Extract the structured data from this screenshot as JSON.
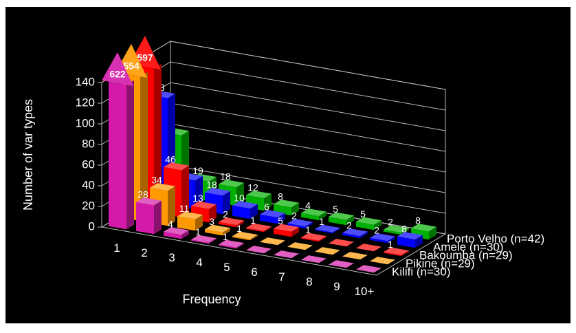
{
  "chart_data": {
    "type": "bar3d",
    "ylabel": "Number of var types",
    "xlabel": "Frequency",
    "categories": [
      "1",
      "2",
      "3",
      "4",
      "5",
      "6",
      "7",
      "8",
      "9",
      "10+"
    ],
    "ylim": [
      0,
      140
    ],
    "yticks": [
      0,
      20,
      40,
      60,
      80,
      100,
      120,
      140
    ],
    "grid": true,
    "series": [
      {
        "name": "Kilifi (n=30)",
        "color": "#d41aa8",
        "values": [
          622,
          28,
          4,
          1,
          1,
          0,
          0,
          0,
          0,
          0
        ]
      },
      {
        "name": "Pikine (n=29)",
        "color": "#ff9900",
        "values": [
          554,
          34,
          11,
          3,
          1,
          0,
          0,
          0,
          0,
          0
        ]
      },
      {
        "name": "Bakoumba (n=29)",
        "color": "#ff0000",
        "values": [
          597,
          46,
          13,
          2,
          1,
          5,
          1,
          0,
          0,
          1
        ]
      },
      {
        "name": "Amele (n=30)",
        "color": "#0000ff",
        "values": [
          103,
          28,
          18,
          10,
          6,
          2,
          1,
          2,
          2,
          8
        ]
      },
      {
        "name": "Porto Velho (n=42)",
        "color": "#00b000",
        "values": [
          59,
          19,
          18,
          12,
          8,
          4,
          5,
          5,
          2,
          8
        ]
      }
    ]
  }
}
